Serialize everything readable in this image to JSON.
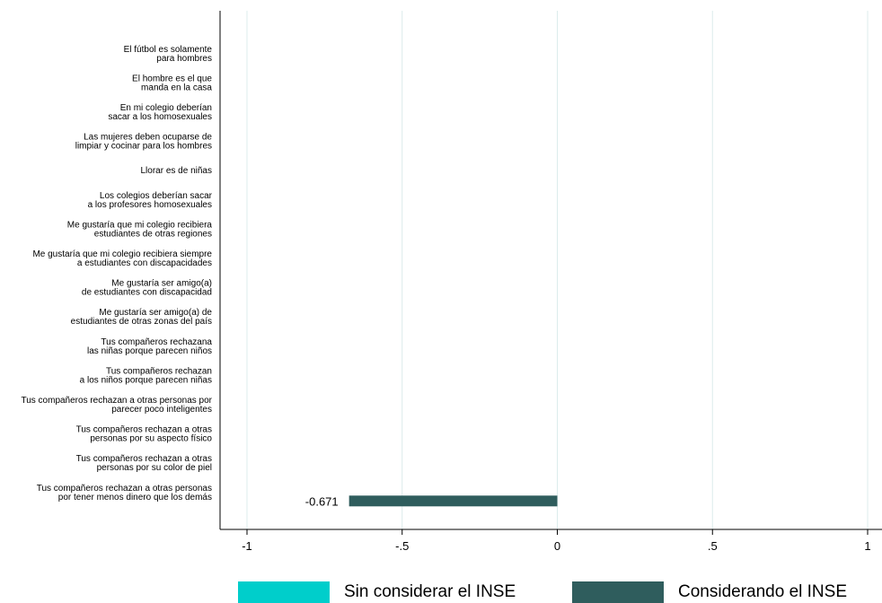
{
  "chart_data": {
    "type": "bar",
    "orientation": "horizontal",
    "categories": [
      [
        "El fútbol es solamente",
        "para hombres"
      ],
      [
        "El hombre es el que",
        "manda en la casa"
      ],
      [
        "En mi colegio deberían",
        "sacar a los homosexuales"
      ],
      [
        "Las mujeres deben ocuparse de",
        "limpiar y cocinar para los hombres"
      ],
      [
        "Llorar es de niñas"
      ],
      [
        "Los colegios deberían sacar",
        "a los profesores homosexuales"
      ],
      [
        "Me gustaría que mi colegio recibiera",
        "estudiantes de otras regiones"
      ],
      [
        "Me gustaría que mi colegio recibiera siempre",
        "a estudiantes con discapacidades"
      ],
      [
        "Me gustaría ser amigo(a)",
        "de estudiantes con discapacidad"
      ],
      [
        "Me gustaría ser amigo(a) de",
        "estudiantes de otras zonas del país"
      ],
      [
        "Tus compañeros rechazana",
        "las niñas porque parecen niños"
      ],
      [
        "Tus compañeros rechazan",
        "a los niños porque parecen niñas"
      ],
      [
        "Tus compañeros rechazan a otras personas por",
        "parecer poco inteligentes"
      ],
      [
        "Tus compañeros rechazan a otras",
        "personas por su aspecto físico"
      ],
      [
        "Tus compañeros rechazan a otras",
        "personas por su color de piel"
      ],
      [
        "Tus compañeros rechazan a otras personas",
        "por tener menos dinero que los demás"
      ]
    ],
    "series": [
      {
        "name": "Sin considerar el INSE",
        "color": "#00cecb",
        "values": [
          null,
          null,
          null,
          null,
          null,
          null,
          null,
          null,
          null,
          null,
          null,
          null,
          null,
          null,
          null,
          null
        ]
      },
      {
        "name": "Considerando el INSE",
        "color": "#2f5d5d",
        "values": [
          null,
          null,
          null,
          null,
          null,
          null,
          null,
          null,
          null,
          null,
          null,
          null,
          null,
          null,
          null,
          -0.671
        ]
      }
    ],
    "data_labels": [
      {
        "category_index": 15,
        "series_index": 1,
        "text": "-0.671"
      }
    ],
    "xlim": [
      -1,
      1
    ],
    "x_ticks": [
      -1,
      -0.5,
      0,
      0.5,
      1
    ],
    "x_tick_labels": [
      "-1",
      "-.5",
      "0",
      ".5",
      "1"
    ],
    "grid": true,
    "grid_color": "#dcecec",
    "legend_position": "bottom",
    "title": "",
    "xlabel": "",
    "ylabel": ""
  }
}
